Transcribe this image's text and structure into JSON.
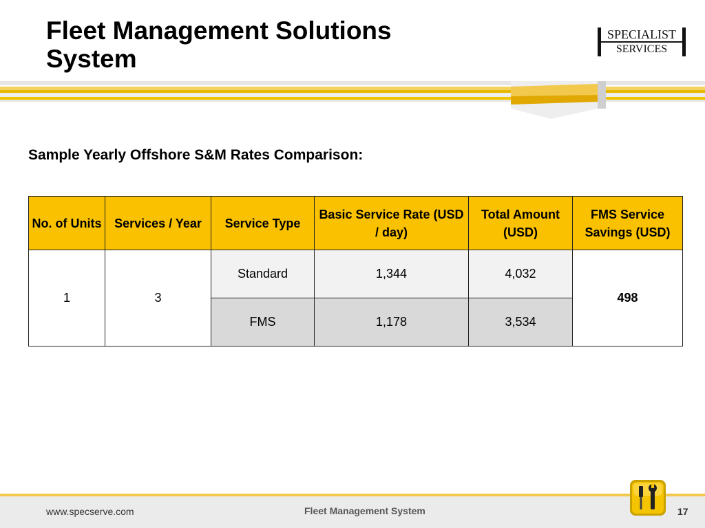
{
  "slide": {
    "title_line1": "Fleet Management Solutions",
    "title_line2": "System",
    "subtitle": "Sample Yearly Offshore S&M Rates Comparison:"
  },
  "logo": {
    "line1": "SPECIALIST",
    "line2": "SERVICES"
  },
  "table": {
    "headers": [
      "No. of Units",
      "Services / Year",
      "Service Type",
      "Basic Service Rate (USD / day)",
      "Total Amount (USD)",
      "FMS Service Savings (USD)"
    ],
    "units": "1",
    "services_per_year": "3",
    "rows": [
      {
        "service_type": "Standard",
        "basic_rate": "1,344",
        "total_amount": "4,032"
      },
      {
        "service_type": "FMS",
        "basic_rate": "1,178",
        "total_amount": "3,534"
      }
    ],
    "savings": "498"
  },
  "footer": {
    "website": "www.specserve.com",
    "center_text": "Fleet Management System",
    "page_number": "17"
  },
  "icons": {
    "footer_icon": "tools-icon"
  },
  "colors": {
    "header_fill": "#f9c100",
    "accent_yellow": "#f2c94c"
  }
}
